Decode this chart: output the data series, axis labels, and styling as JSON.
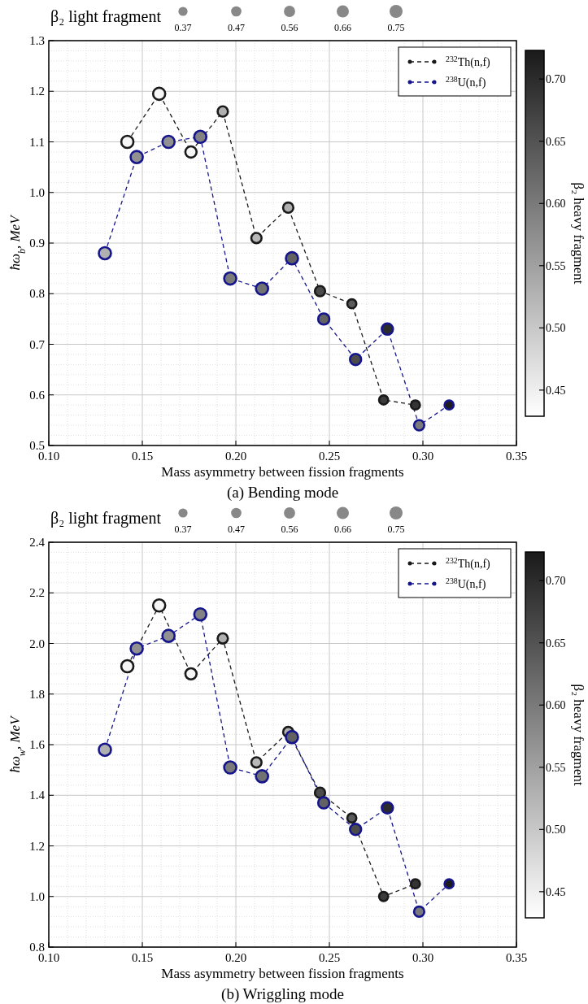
{
  "chart_data": [
    {
      "type": "bubble",
      "title": "(a) Bending mode",
      "xlabel": "Mass asymmetry between fission fragments",
      "ylabel": "ħω$_{b}$, MeV",
      "clabel": "β₂ heavy fragment",
      "legend_title": "β₂ light fragment",
      "size_legend": [
        0.37,
        0.47,
        0.56,
        0.66,
        0.75
      ],
      "xlim": [
        0.1,
        0.35
      ],
      "xticks": [
        {
          "value": 0.1,
          "label": "0.10"
        },
        {
          "value": 0.15,
          "label": "0.15"
        },
        {
          "value": 0.2,
          "label": "0.20"
        },
        {
          "value": 0.25,
          "label": "0.25"
        },
        {
          "value": 0.3,
          "label": "0.30"
        },
        {
          "value": 0.35,
          "label": "0.35"
        }
      ],
      "ylim": [
        0.5,
        1.3
      ],
      "yticks": [
        {
          "value": 0.5,
          "label": "0.5"
        },
        {
          "value": 0.6,
          "label": "0.6"
        },
        {
          "value": 0.7,
          "label": "0.7"
        },
        {
          "value": 0.8,
          "label": "0.8"
        },
        {
          "value": 0.9,
          "label": "0.9"
        },
        {
          "value": 1.0,
          "label": "1.0"
        },
        {
          "value": 1.1,
          "label": "1.1"
        },
        {
          "value": 1.2,
          "label": "1.2"
        },
        {
          "value": 1.3,
          "label": "1.3"
        }
      ],
      "clim": [
        0.429,
        0.723
      ],
      "cticks": [
        {
          "value": 0.45,
          "label": "0.45"
        },
        {
          "value": 0.5,
          "label": "0.50"
        },
        {
          "value": 0.55,
          "label": "0.55"
        },
        {
          "value": 0.6,
          "label": "0.60"
        },
        {
          "value": 0.65,
          "label": "0.65"
        },
        {
          "value": 0.7,
          "label": "0.70"
        }
      ],
      "grid": true,
      "legend": "top right",
      "line_style": "dashed",
      "series": [
        {
          "type": "line",
          "color": "#1a1a1a",
          "x": [
            0.142,
            0.159,
            0.176,
            0.193,
            0.211,
            0.228,
            0.245,
            0.262,
            0.279,
            0.296
          ],
          "values": [
            1.1,
            1.195,
            1.08,
            1.16,
            0.91,
            0.97,
            0.805,
            0.78,
            0.59,
            0.58
          ]
        },
        {
          "type": "line",
          "color": "#15158c",
          "x": [
            0.13,
            0.147,
            0.164,
            0.181,
            0.197,
            0.214,
            0.23,
            0.247,
            0.264,
            0.281,
            0.298,
            0.314
          ],
          "values": [
            0.88,
            1.07,
            1.1,
            1.11,
            0.83,
            0.81,
            0.87,
            0.75,
            0.67,
            0.73,
            0.54,
            0.58
          ]
        },
        {
          "name": "$^{232}$Th(n,f)",
          "color": "#1a1a1a",
          "x": [
            0.142,
            0.159,
            0.176,
            0.193,
            0.211,
            0.228,
            0.245,
            0.262,
            0.279,
            0.296
          ],
          "values": [
            1.1,
            1.195,
            1.08,
            1.16,
            0.91,
            0.97,
            0.805,
            0.78,
            0.59,
            0.58
          ],
          "sizes": [
            0.66,
            0.66,
            0.56,
            0.47,
            0.47,
            0.47,
            0.47,
            0.37,
            0.37,
            0.37
          ],
          "cvalues": [
            0.44,
            0.44,
            0.44,
            0.53,
            0.52,
            0.53,
            0.66,
            0.64,
            0.68,
            0.69
          ]
        },
        {
          "name": "$^{238}$U(n,f)",
          "color": "#15158c",
          "x": [
            0.13,
            0.147,
            0.164,
            0.181,
            0.197,
            0.214,
            0.23,
            0.247,
            0.264,
            0.281,
            0.298,
            0.314
          ],
          "values": [
            0.88,
            1.07,
            1.1,
            1.11,
            0.83,
            0.81,
            0.87,
            0.75,
            0.67,
            0.73,
            0.54,
            0.58
          ],
          "sizes": [
            0.66,
            0.66,
            0.66,
            0.66,
            0.66,
            0.66,
            0.66,
            0.56,
            0.56,
            0.56,
            0.47,
            0.37
          ],
          "cvalues": [
            0.53,
            0.57,
            0.57,
            0.59,
            0.6,
            0.61,
            0.63,
            0.63,
            0.66,
            0.7,
            0.6,
            0.72
          ]
        }
      ]
    },
    {
      "type": "bubble",
      "title": "(b) Wriggling mode",
      "xlabel": "Mass asymmetry between fission fragments",
      "ylabel": "ħω$_{w}$, MeV",
      "clabel": "β₂ heavy fragment",
      "legend_title": "β₂ light fragment",
      "size_legend": [
        0.37,
        0.47,
        0.56,
        0.66,
        0.75
      ],
      "xlim": [
        0.1,
        0.35
      ],
      "xticks": [
        {
          "value": 0.1,
          "label": "0.10"
        },
        {
          "value": 0.15,
          "label": "0.15"
        },
        {
          "value": 0.2,
          "label": "0.20"
        },
        {
          "value": 0.25,
          "label": "0.25"
        },
        {
          "value": 0.3,
          "label": "0.30"
        },
        {
          "value": 0.35,
          "label": "0.35"
        }
      ],
      "ylim": [
        0.8,
        2.4
      ],
      "yticks": [
        {
          "value": 0.8,
          "label": "0.8"
        },
        {
          "value": 1.0,
          "label": "1.0"
        },
        {
          "value": 1.2,
          "label": "1.2"
        },
        {
          "value": 1.4,
          "label": "1.4"
        },
        {
          "value": 1.6,
          "label": "1.6"
        },
        {
          "value": 1.8,
          "label": "1.8"
        },
        {
          "value": 2.0,
          "label": "2.0"
        },
        {
          "value": 2.2,
          "label": "2.2"
        },
        {
          "value": 2.4,
          "label": "2.4"
        }
      ],
      "clim": [
        0.429,
        0.723
      ],
      "cticks": [
        {
          "value": 0.45,
          "label": "0.45"
        },
        {
          "value": 0.5,
          "label": "0.50"
        },
        {
          "value": 0.55,
          "label": "0.55"
        },
        {
          "value": 0.6,
          "label": "0.60"
        },
        {
          "value": 0.65,
          "label": "0.65"
        },
        {
          "value": 0.7,
          "label": "0.70"
        }
      ],
      "grid": true,
      "legend": "top right",
      "line_style": "dashed",
      "series": [
        {
          "type": "line",
          "color": "#1a1a1a",
          "x": [
            0.142,
            0.159,
            0.176,
            0.193,
            0.211,
            0.228,
            0.245,
            0.262,
            0.279,
            0.296
          ],
          "values": [
            1.91,
            2.15,
            1.88,
            2.02,
            1.53,
            1.65,
            1.41,
            1.31,
            1.0,
            1.05
          ]
        },
        {
          "type": "line",
          "color": "#15158c",
          "x": [
            0.13,
            0.147,
            0.164,
            0.181,
            0.197,
            0.214,
            0.23,
            0.247,
            0.264,
            0.281,
            0.298,
            0.314
          ],
          "values": [
            1.58,
            1.98,
            2.03,
            2.115,
            1.51,
            1.475,
            1.63,
            1.37,
            1.265,
            1.35,
            0.94,
            1.05
          ]
        },
        {
          "name": "$^{232}$Th(n,f)",
          "color": "#1a1a1a",
          "x": [
            0.142,
            0.159,
            0.176,
            0.193,
            0.211,
            0.228,
            0.245,
            0.262,
            0.279,
            0.296
          ],
          "values": [
            1.91,
            2.15,
            1.88,
            2.02,
            1.53,
            1.65,
            1.41,
            1.31,
            1.0,
            1.05
          ],
          "sizes": [
            0.66,
            0.66,
            0.56,
            0.47,
            0.47,
            0.47,
            0.47,
            0.37,
            0.37,
            0.37
          ],
          "cvalues": [
            0.44,
            0.44,
            0.44,
            0.53,
            0.52,
            0.53,
            0.66,
            0.64,
            0.68,
            0.69
          ]
        },
        {
          "name": "$^{238}$U(n,f)",
          "color": "#15158c",
          "x": [
            0.13,
            0.147,
            0.164,
            0.181,
            0.197,
            0.214,
            0.23,
            0.247,
            0.264,
            0.281,
            0.298,
            0.314
          ],
          "values": [
            1.58,
            1.98,
            2.03,
            2.115,
            1.51,
            1.475,
            1.63,
            1.37,
            1.265,
            1.35,
            0.94,
            1.05
          ],
          "sizes": [
            0.66,
            0.66,
            0.66,
            0.66,
            0.66,
            0.66,
            0.66,
            0.56,
            0.56,
            0.56,
            0.47,
            0.37
          ],
          "cvalues": [
            0.53,
            0.57,
            0.57,
            0.59,
            0.6,
            0.61,
            0.63,
            0.63,
            0.66,
            0.7,
            0.6,
            0.72
          ]
        }
      ]
    }
  ]
}
